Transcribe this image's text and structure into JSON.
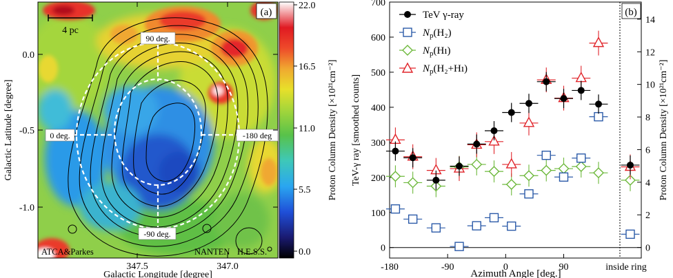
{
  "chart_data": [
    {
      "type": "heatmap",
      "panel_label": "(a)",
      "xlabel": "Galactic Longitude [degree]",
      "ylabel": "Galactic Latitude [degree]",
      "x_ticks": [
        "347.5",
        "347.0"
      ],
      "y_ticks": [
        "0.0",
        "-0.5",
        "-1.0"
      ],
      "colorbar": {
        "label": "Proton Column Density [×10²¹cm⁻²]",
        "ticks": [
          "22.0",
          "16.5",
          "11.0",
          "5.5",
          "0.0"
        ],
        "range": [
          0.0,
          22.0
        ]
      },
      "scale_bar": "4 pc",
      "ring_labels": [
        "90 deg.",
        "0 deg.",
        "-180 deg",
        "-90 deg."
      ],
      "annotations": [
        "ATCA&Parkes",
        "NANTEN",
        "H.E.S.S."
      ]
    },
    {
      "type": "scatter",
      "panel_label": "(b)",
      "xlabel": "Azimuth Angle [deg.]",
      "ylabel_left": "TeV-γ ray [smoothed counts]",
      "ylabel_right": "Proton Column Density [×10²¹cm⁻²]",
      "x_ticks": [
        "-180",
        "-90",
        "0",
        "90"
      ],
      "x_extra_label": "inside ring",
      "ylim_left": [
        -30,
        700
      ],
      "y_ticks_left": [
        "0",
        "100",
        "200",
        "300",
        "400",
        "500",
        "600",
        "700"
      ],
      "ylim_right": [
        -0.65,
        15.05
      ],
      "y_ticks_right": [
        "0",
        "2",
        "4",
        "6",
        "8",
        "10",
        "12",
        "14"
      ],
      "legend_position": "top-left",
      "x": [
        -171,
        -144,
        -108,
        -72,
        -45,
        -18,
        9,
        36,
        63,
        90,
        117,
        144
      ],
      "series": [
        {
          "name": "TeV γ-ray",
          "marker": "circle",
          "color": "#000000",
          "values": [
            275,
            256,
            192,
            232,
            295,
            333,
            385,
            411,
            473,
            425,
            448,
            409
          ],
          "inside_ring": 235
        },
        {
          "name": "Nₚ(H₂)",
          "marker": "square",
          "color": "#2b5aa8",
          "values": [
            110,
            81,
            56,
            3,
            62,
            85,
            61,
            153,
            263,
            201,
            255,
            373
          ],
          "inside_ring": 38
        },
        {
          "name": "Nₚ(Hı)",
          "marker": "diamond",
          "color": "#6cb83a",
          "values": [
            203,
            185,
            175,
            230,
            237,
            217,
            180,
            205,
            220,
            225,
            231,
            213
          ],
          "inside_ring": 192
        },
        {
          "name": "Nₚ(H₂+Hı)",
          "marker": "triangle",
          "color": "#e0242a",
          "values": [
            307,
            259,
            220,
            225,
            293,
            302,
            237,
            355,
            478,
            426,
            483,
            583
          ],
          "inside_ring": 230
        }
      ]
    }
  ],
  "legend_text": {
    "tev": "TeV γ-ray",
    "h2": {
      "n": "N",
      "sub": "p",
      "rest": "(H₂)"
    },
    "h1": {
      "n": "N",
      "sub": "p",
      "rest": "(Hı)"
    },
    "h2h1": {
      "n": "N",
      "sub": "p",
      "rest": "(H₂+Hı)"
    }
  }
}
